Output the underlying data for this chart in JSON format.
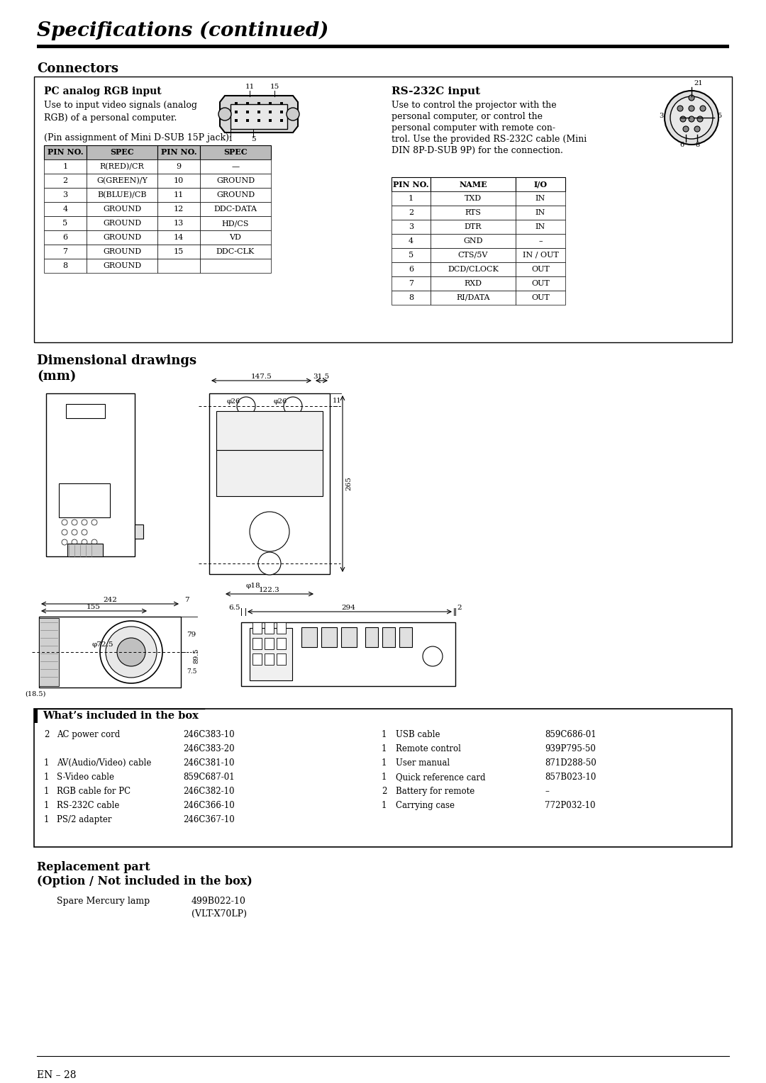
{
  "title": "Specifications (continued)",
  "section_connectors": "Connectors",
  "pc_analog_title": "PC analog RGB input",
  "pc_analog_line1": "Use to input video signals (analog",
  "pc_analog_line2": "RGB) of a personal computer.",
  "pc_analog_line3": "(Pin assignment of Mini D-SUB 15P jack)",
  "pc_table_headers": [
    "PIN NO.",
    "SPEC",
    "PIN NO.",
    "SPEC"
  ],
  "pc_table_data": [
    [
      "1",
      "R(RED)/CR",
      "9",
      "—"
    ],
    [
      "2",
      "G(GREEN)/Y",
      "10",
      "GROUND"
    ],
    [
      "3",
      "B(BLUE)/CB",
      "11",
      "GROUND"
    ],
    [
      "4",
      "GROUND",
      "12",
      "DDC-DATA"
    ],
    [
      "5",
      "GROUND",
      "13",
      "HD/CS"
    ],
    [
      "6",
      "GROUND",
      "14",
      "VD"
    ],
    [
      "7",
      "GROUND",
      "15",
      "DDC-CLK"
    ],
    [
      "8",
      "GROUND",
      "",
      ""
    ]
  ],
  "rs232_title": "RS-232C input",
  "rs232_lines": [
    "Use to control the projector with the",
    "personal computer, or control the",
    "personal computer with remote con-",
    "trol. Use the provided RS-232C cable (Mini",
    "DIN 8P-D-SUB 9P) for the connection."
  ],
  "rs232_table_headers": [
    "PIN NO.",
    "NAME",
    "I/O"
  ],
  "rs232_table_data": [
    [
      "1",
      "TXD",
      "IN"
    ],
    [
      "2",
      "RTS",
      "IN"
    ],
    [
      "3",
      "DTR",
      "IN"
    ],
    [
      "4",
      "GND",
      "–"
    ],
    [
      "5",
      "CTS/5V",
      "IN / OUT"
    ],
    [
      "6",
      "DCD/CLOCK",
      "OUT"
    ],
    [
      "7",
      "RXD",
      "OUT"
    ],
    [
      "8",
      "RI/DATA",
      "OUT"
    ]
  ],
  "dim_heading1": "Dimensional drawings",
  "dim_heading2": "(mm)",
  "whats_included_title": "What’s included in the box",
  "whats_included_left": [
    [
      "2",
      "AC power cord",
      "246C383-10"
    ],
    [
      "",
      "",
      "246C383-20"
    ],
    [
      "1",
      "AV(Audio/Video) cable",
      "246C381-10"
    ],
    [
      "1",
      "S-Video cable",
      "859C687-01"
    ],
    [
      "1",
      "RGB cable for PC",
      "246C382-10"
    ],
    [
      "1",
      "RS-232C cable",
      "246C366-10"
    ],
    [
      "1",
      "PS/2 adapter",
      "246C367-10"
    ]
  ],
  "whats_included_right": [
    [
      "1",
      "USB cable",
      "859C686-01"
    ],
    [
      "1",
      "Remote control",
      "939P795-50"
    ],
    [
      "1",
      "User manual",
      "871D288-50"
    ],
    [
      "1",
      "Quick reference card",
      "857B023-10"
    ],
    [
      "2",
      "Battery for remote",
      "–"
    ],
    [
      "1",
      "Carrying case",
      "772P032-10"
    ]
  ],
  "replacement_title1": "Replacement part",
  "replacement_title2": "(Option / Not included in the box)",
  "replacement_items": [
    [
      "Spare Mercury lamp",
      "499B022-10",
      ""
    ],
    [
      "",
      "(VLT-X70LP)",
      ""
    ]
  ],
  "footer": "EN – 28",
  "bg": "#ffffff"
}
